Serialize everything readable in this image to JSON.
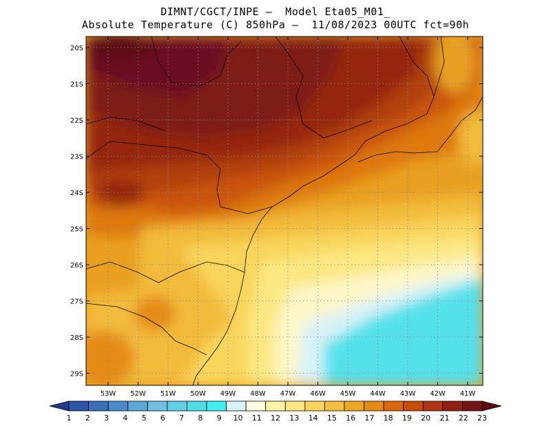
{
  "title": {
    "line1": "DIMNT/CGCT/INPE —  Model Eta05_M01_",
    "line2": "Absolute Temperature (C) 850hPa —  11/08/2023 00UTC fct=90h"
  },
  "map": {
    "lat_labels": [
      "20S",
      "21S",
      "22S",
      "23S",
      "24S",
      "25S",
      "26S",
      "27S",
      "28S",
      "29S"
    ],
    "lon_labels": [
      "53W",
      "52W",
      "51W",
      "50W",
      "49W",
      "48W",
      "47W",
      "46W",
      "45W",
      "44W",
      "43W",
      "42W",
      "41W"
    ]
  },
  "colorbar": {
    "labels": [
      "1",
      "2",
      "3",
      "4",
      "5",
      "6",
      "7",
      "8",
      "9",
      "10",
      "11",
      "12",
      "13",
      "14",
      "15",
      "16",
      "17",
      "18",
      "19",
      "20",
      "21",
      "22",
      "23"
    ],
    "colors": [
      "#1f3b8f",
      "#2a55a6",
      "#3a70ba",
      "#4a8bc9",
      "#5ea6d6",
      "#72bfe0",
      "#5fd0e6",
      "#4fdde8",
      "#3ff0f0",
      "#d8f4f8",
      "#fff9e0",
      "#fff3a8",
      "#ffe680",
      "#fcd45c",
      "#f5be3e",
      "#eda722",
      "#e58a12",
      "#d9690a",
      "#c84c0a",
      "#ad3512",
      "#8f2214",
      "#741414",
      "#5a0c14"
    ]
  },
  "colors": {
    "deep_maroon": "#6a1020",
    "maroon": "#7e1a18",
    "dark_red": "#94270f",
    "red_orange": "#b0400c",
    "burnt_orange": "#c9550d",
    "orange": "#dd780f",
    "light_orange": "#e9a021",
    "gold": "#f2bb3a",
    "yellow": "#f9d55c",
    "pale_yellow": "#fbe882",
    "cream": "#fef6c8",
    "ice": "#d7f3f8",
    "cyan": "#55e1ec"
  }
}
